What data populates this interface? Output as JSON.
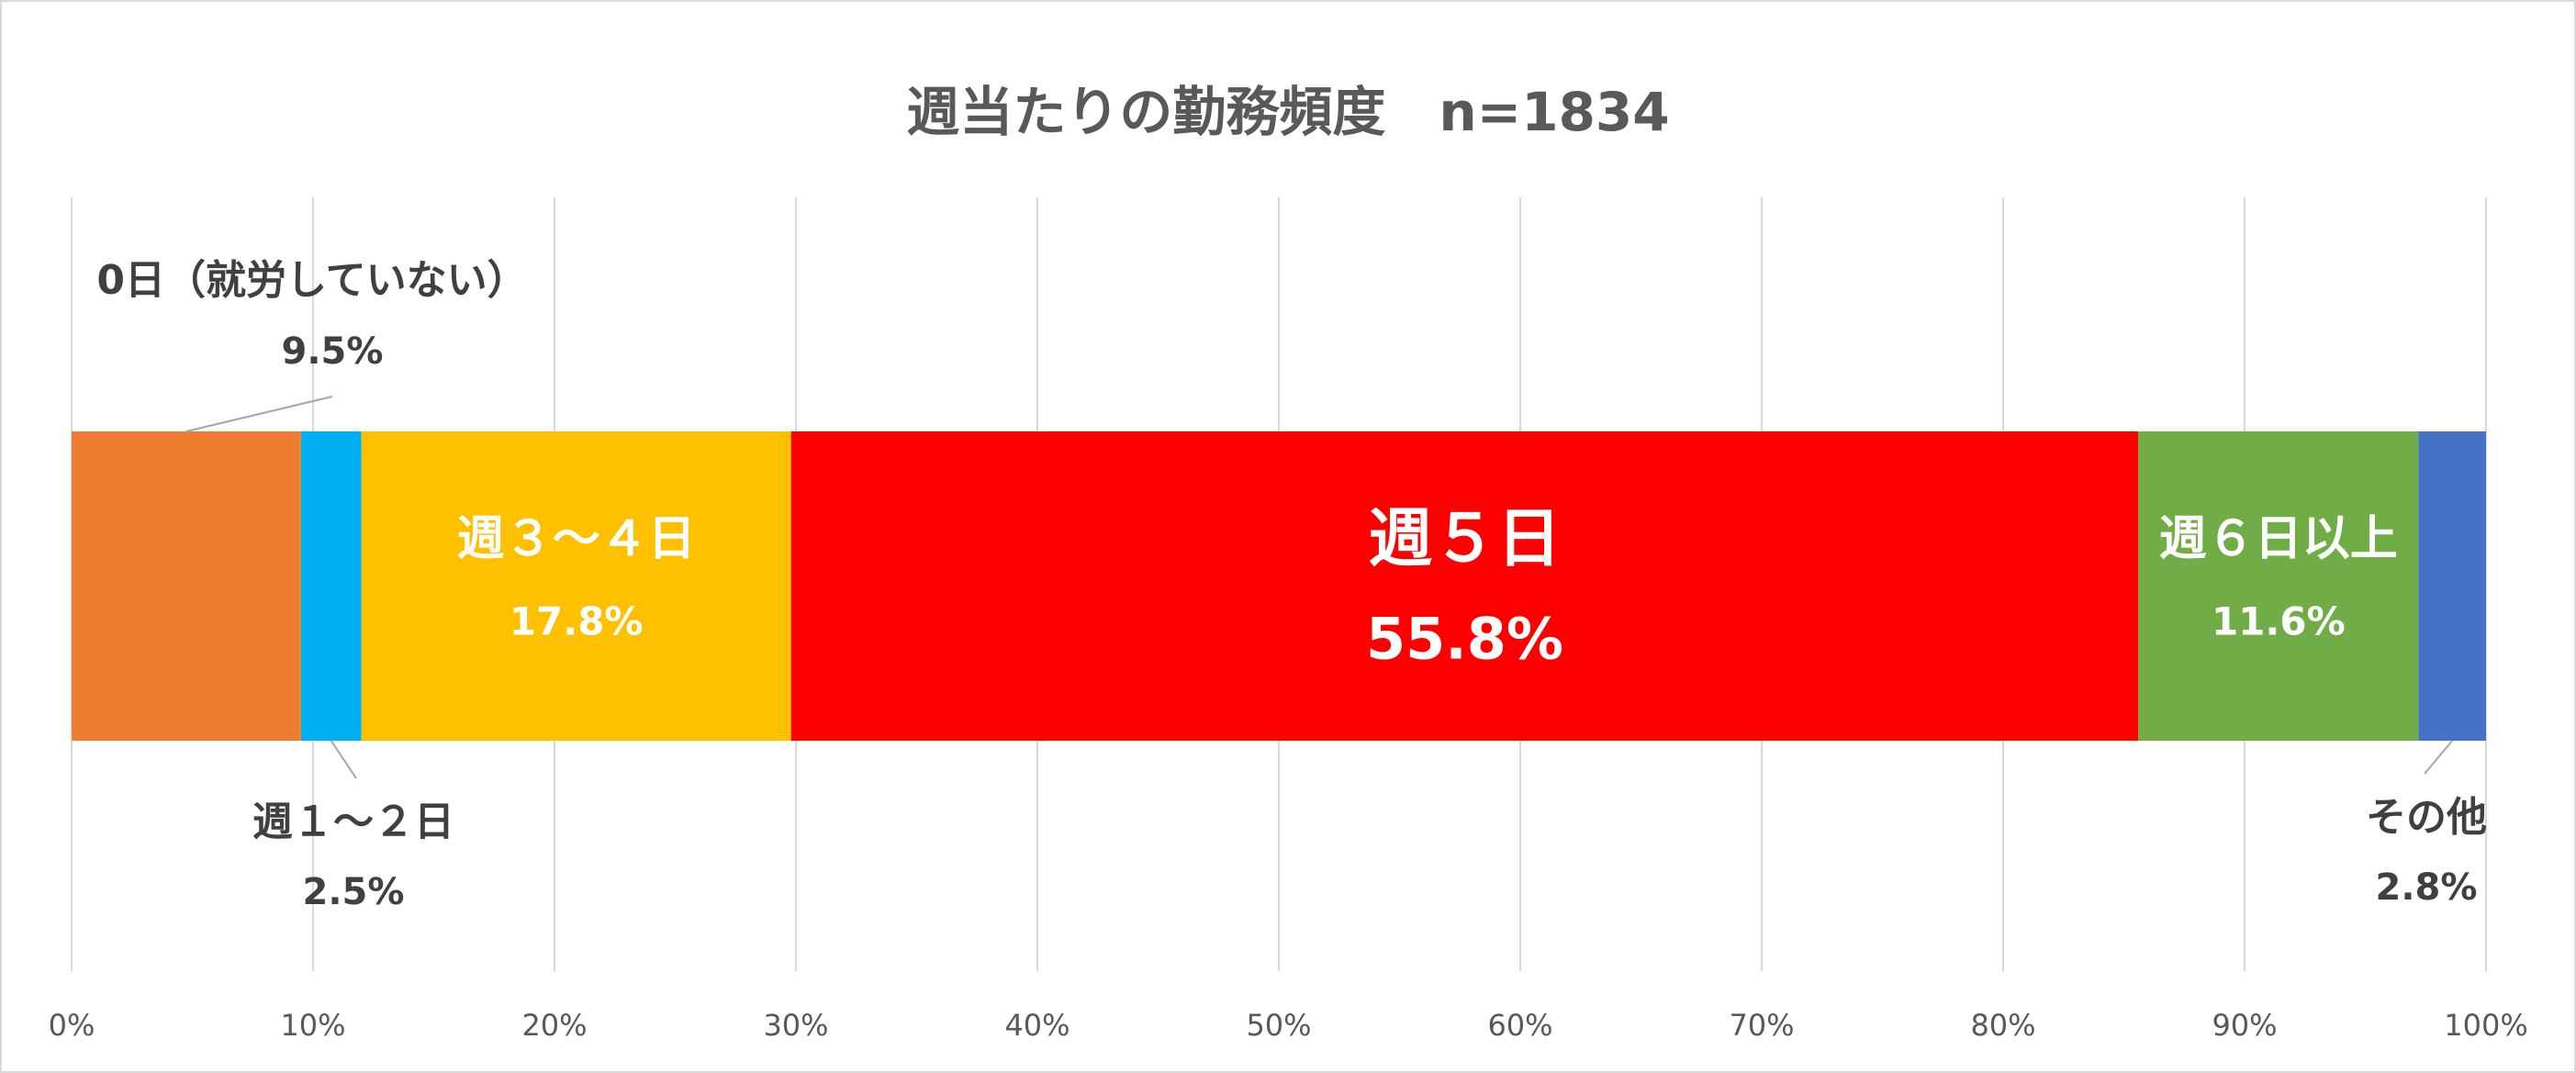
{
  "chart_data": {
    "type": "bar",
    "orientation": "horizontal-stacked-100",
    "title": "週当たりの勤務頻度　n=1834",
    "xlim": [
      0,
      100
    ],
    "x_ticks": [
      "0%",
      "10%",
      "20%",
      "30%",
      "40%",
      "50%",
      "60%",
      "70%",
      "80%",
      "90%",
      "100%"
    ],
    "grid": true,
    "series": [
      {
        "name": "0日（就労していない）",
        "value": 9.5,
        "label": "9.5%",
        "color": "#ED7D31",
        "label_placement": "outside-top-left"
      },
      {
        "name": "週１～２日",
        "value": 2.5,
        "label": "2.5%",
        "color": "#00B0F0",
        "label_placement": "outside-bottom"
      },
      {
        "name": "週３～４日",
        "value": 17.8,
        "label": "17.8%",
        "color": "#FFC000",
        "label_placement": "inside"
      },
      {
        "name": "週５日",
        "value": 55.8,
        "label": "55.8%",
        "color": "#FF0000",
        "label_placement": "inside-large"
      },
      {
        "name": "週６日以上",
        "value": 11.6,
        "label": "11.6%",
        "color": "#70AD47",
        "label_placement": "inside"
      },
      {
        "name": "その他",
        "value": 2.8,
        "label": "2.8%",
        "color": "#4472C4",
        "label_placement": "outside-bottom-right"
      }
    ]
  }
}
